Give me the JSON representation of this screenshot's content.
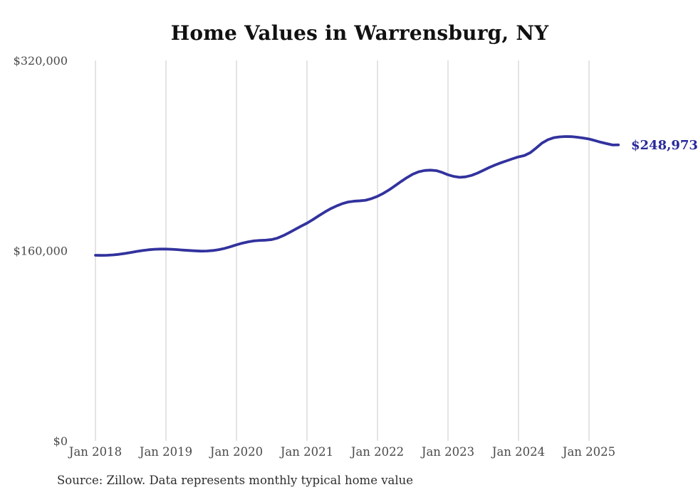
{
  "title": "Home Values in Warrensburg, NY",
  "source_note": "Source: Zillow. Data represents monthly typical home value",
  "end_value_label": "$248,973",
  "colors": {
    "line": "#32329E",
    "end_label": "#28289B",
    "gridline": "#c9c9c9",
    "axis_text": "#4a4a4a",
    "title_text": "#111111",
    "source_text": "#2e2e2e",
    "background": "#ffffff"
  },
  "chart_data": {
    "type": "line",
    "title": "Home Values in Warrensburg, NY",
    "xlabel": "",
    "ylabel": "",
    "x_start": "2018-01",
    "x_interval": "monthly",
    "x_end": "2025-06",
    "x_tick_labels": [
      "Jan 2018",
      "Jan 2019",
      "Jan 2020",
      "Jan 2021",
      "Jan 2022",
      "Jan 2023",
      "Jan 2024",
      "Jan 2025"
    ],
    "y_ticks": [
      {
        "label": "$0",
        "value": 0
      },
      {
        "label": "$160,000",
        "value": 160000
      },
      {
        "label": "$320,000",
        "value": 320000
      }
    ],
    "ylim": [
      0,
      320000
    ],
    "grid": "vertical-only",
    "legend": "none",
    "last_value": 248973,
    "last_value_label": "$248,973",
    "series": [
      {
        "values": [
          156100,
          156000,
          156100,
          156400,
          156900,
          157600,
          158400,
          159300,
          160100,
          160700,
          161100,
          161300,
          161300,
          161100,
          160800,
          160400,
          160100,
          159800,
          159600,
          159700,
          160100,
          160800,
          161900,
          163300,
          164900,
          166300,
          167400,
          168200,
          168600,
          168800,
          169300,
          170600,
          172700,
          175200,
          177900,
          180600,
          183100,
          186100,
          189300,
          192400,
          195200,
          197500,
          199500,
          200900,
          201600,
          201900,
          202400,
          203800,
          205700,
          208200,
          211200,
          214600,
          218100,
          221400,
          224300,
          226300,
          227400,
          227700,
          227300,
          225800,
          223800,
          222400,
          221700,
          222100,
          223300,
          225200,
          227500,
          229900,
          232000,
          233900,
          235600,
          237300,
          238900,
          240000,
          242400,
          246300,
          250500,
          253300,
          255000,
          255700,
          256000,
          255900,
          255400,
          254700,
          253900,
          252600,
          251200,
          250000,
          248900,
          248973
        ]
      }
    ]
  }
}
